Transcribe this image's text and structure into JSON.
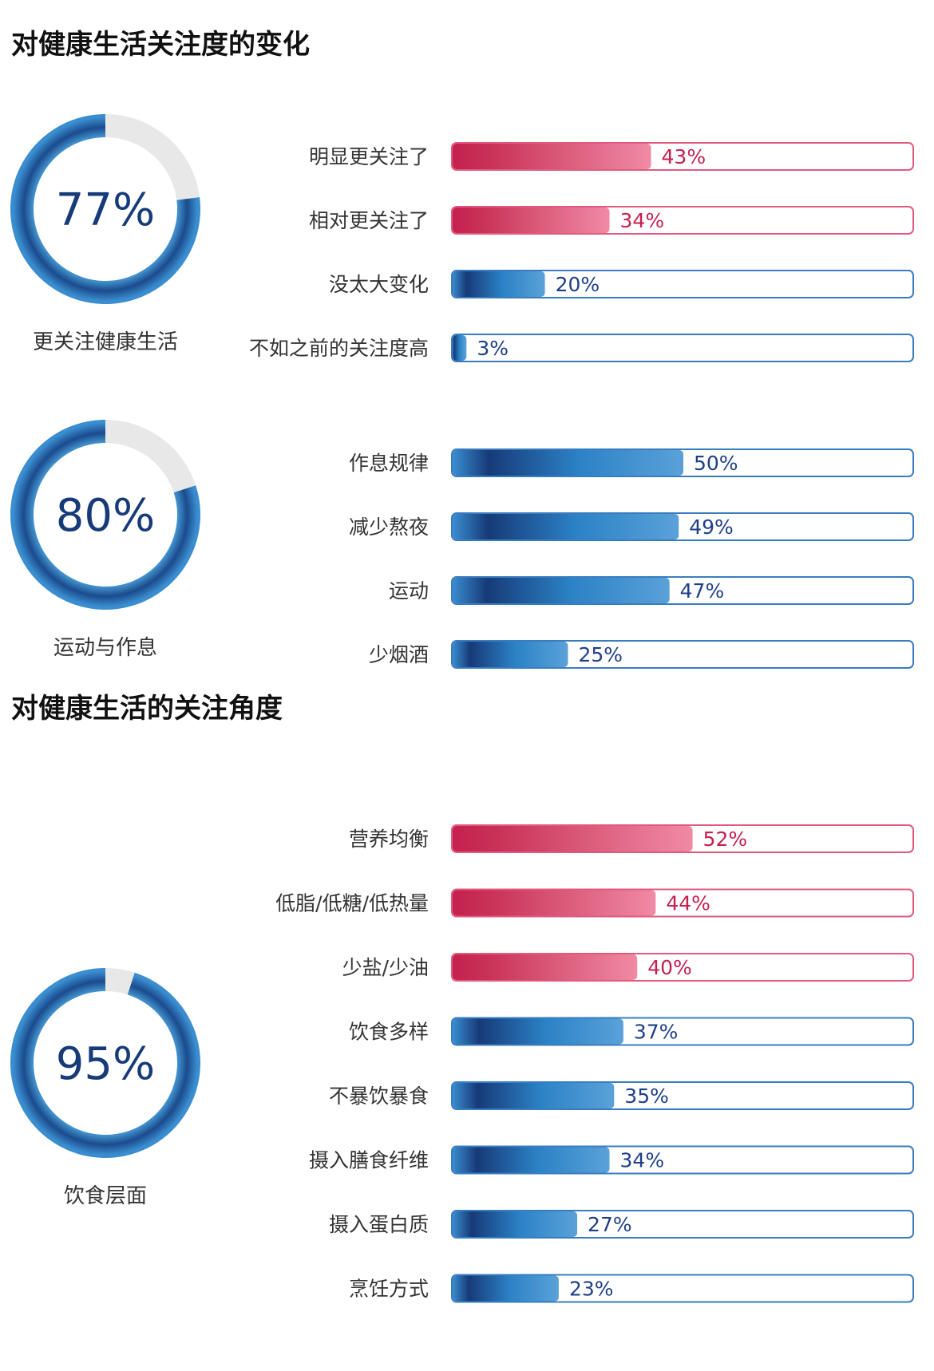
{
  "sections": [
    {
      "title": "对健康生活关注度的变化"
    },
    {
      "title": "对健康生活的关注角度"
    }
  ],
  "colors": {
    "pink_dark": "#c4204e",
    "pink_light": "#f08aa4",
    "pink_text": "#c4204e",
    "blue_dark": "#173a78",
    "blue_mid": "#2b82c6",
    "blue_light": "#5aa1d8",
    "blue_text": "#1e3f88",
    "ring_track": "#e8e8e8",
    "label_text": "#333333"
  },
  "chart_data": [
    {
      "type": "bar",
      "group": "更关注健康生活",
      "gauge": {
        "value": 77,
        "display": "77%",
        "label": "更关注健康生活"
      },
      "categories": [
        "明显更关注了",
        "相对更关注了",
        "没太大变化",
        "不如之前的关注度高"
      ],
      "values": [
        43,
        34,
        20,
        3
      ],
      "value_labels": [
        "43%",
        "34%",
        "20%",
        "3%"
      ],
      "colors": [
        "pink",
        "pink",
        "blue",
        "blue"
      ],
      "xlim": [
        0,
        100
      ]
    },
    {
      "type": "bar",
      "group": "运动与作息",
      "gauge": {
        "value": 80,
        "display": "80%",
        "label": "运动与作息"
      },
      "categories": [
        "作息规律",
        "减少熬夜",
        "运动",
        "少烟酒"
      ],
      "values": [
        50,
        49,
        47,
        25
      ],
      "value_labels": [
        "50%",
        "49%",
        "47%",
        "25%"
      ],
      "colors": [
        "blue",
        "blue",
        "blue",
        "blue"
      ],
      "xlim": [
        0,
        100
      ]
    },
    {
      "type": "bar",
      "group": "饮食层面",
      "gauge": {
        "value": 95,
        "display": "95%",
        "label": "饮食层面"
      },
      "categories": [
        "营养均衡",
        "低脂/低糖/低热量",
        "少盐/少油",
        "饮食多样",
        "不暴饮暴食",
        "摄入膳食纤维",
        "摄入蛋白质",
        "烹饪方式"
      ],
      "values": [
        52,
        44,
        40,
        37,
        35,
        34,
        27,
        23
      ],
      "value_labels": [
        "52%",
        "44%",
        "40%",
        "37%",
        "35%",
        "34%",
        "27%",
        "23%"
      ],
      "colors": [
        "pink",
        "pink",
        "pink",
        "blue",
        "blue",
        "blue",
        "blue",
        "blue"
      ],
      "xlim": [
        0,
        100
      ]
    }
  ]
}
